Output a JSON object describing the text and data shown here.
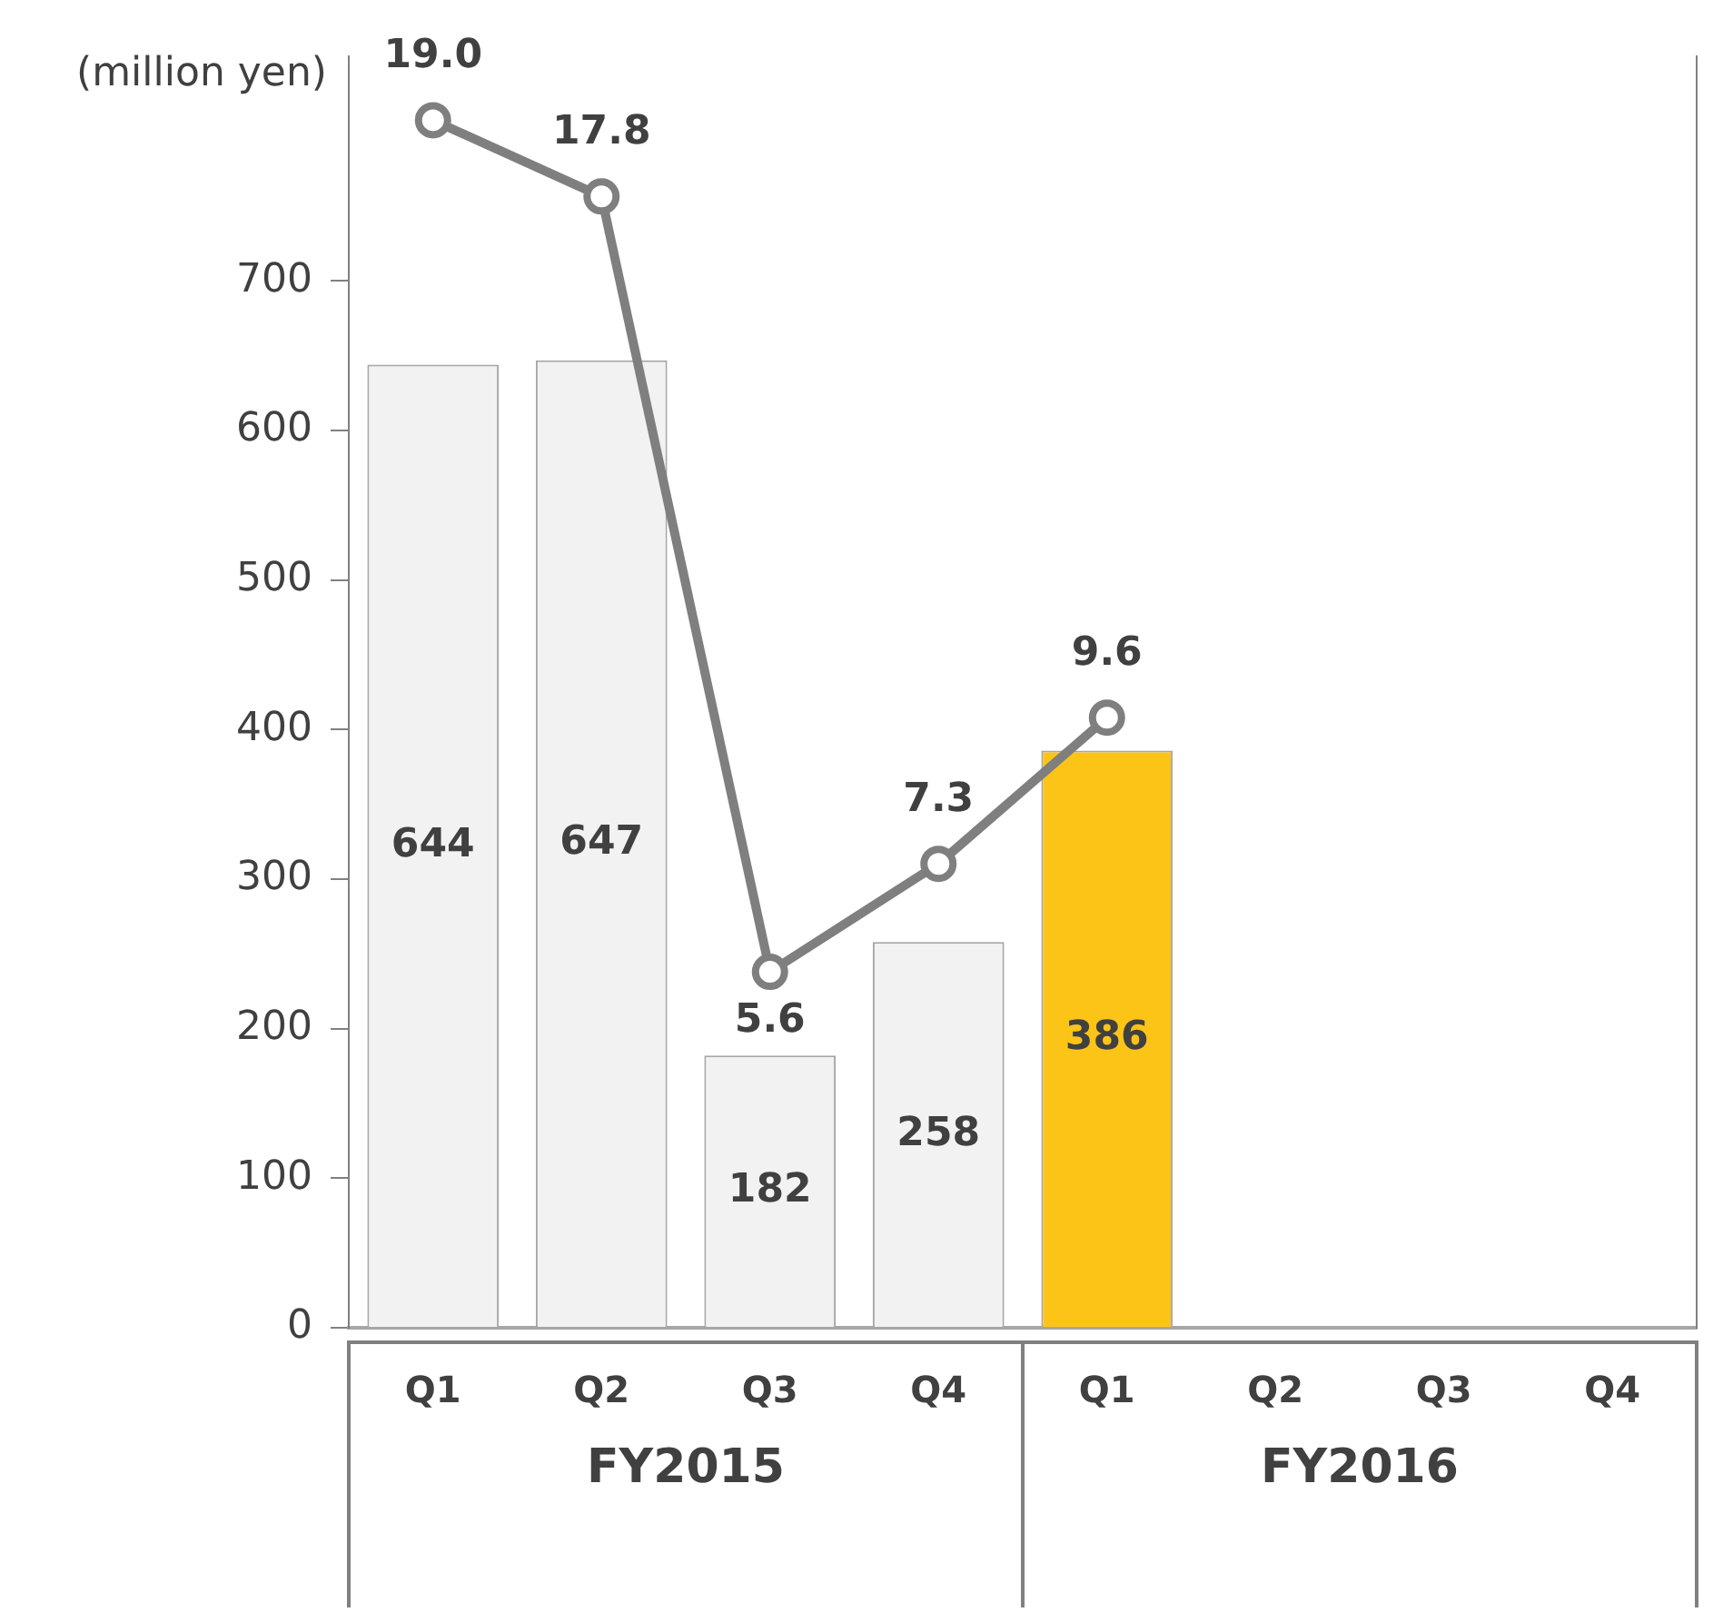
{
  "chart_data": {
    "type": "bar",
    "ylabel": "(million yen)",
    "categories": [
      "Q1",
      "Q2",
      "Q3",
      "Q4",
      "Q1",
      "Q2",
      "Q3",
      "Q4"
    ],
    "series": [
      {
        "colors": [
          "#f2f2f2",
          "#f2f2f2",
          "#f2f2f2",
          "#f2f2f2",
          "#fdc418",
          "#f2f2f2",
          "#f2f2f2",
          "#f2f2f2"
        ],
        "values": [
          644,
          647,
          182,
          258,
          386,
          null,
          null,
          null
        ],
        "value_labels": [
          "644",
          "647",
          "182",
          "258",
          "386",
          null,
          null,
          null
        ]
      },
      {
        "type": "line",
        "axis": "y2",
        "color": "#7f7f7f",
        "values": [
          19.0,
          17.8,
          5.6,
          7.3,
          9.6,
          null,
          null,
          null
        ],
        "value_labels": [
          "19.0",
          "17.8",
          "5.6",
          "7.3",
          "9.6",
          null,
          null,
          null
        ]
      }
    ],
    "ylim": [
      0,
      850
    ],
    "yticks": [
      0,
      100,
      200,
      300,
      400,
      500,
      600,
      700
    ],
    "y2lim": [
      0,
      20
    ],
    "annotations": [
      "FY2015",
      "FY2016"
    ],
    "marker": "circle",
    "line_style": "solid",
    "grid": false,
    "legend": false
  }
}
